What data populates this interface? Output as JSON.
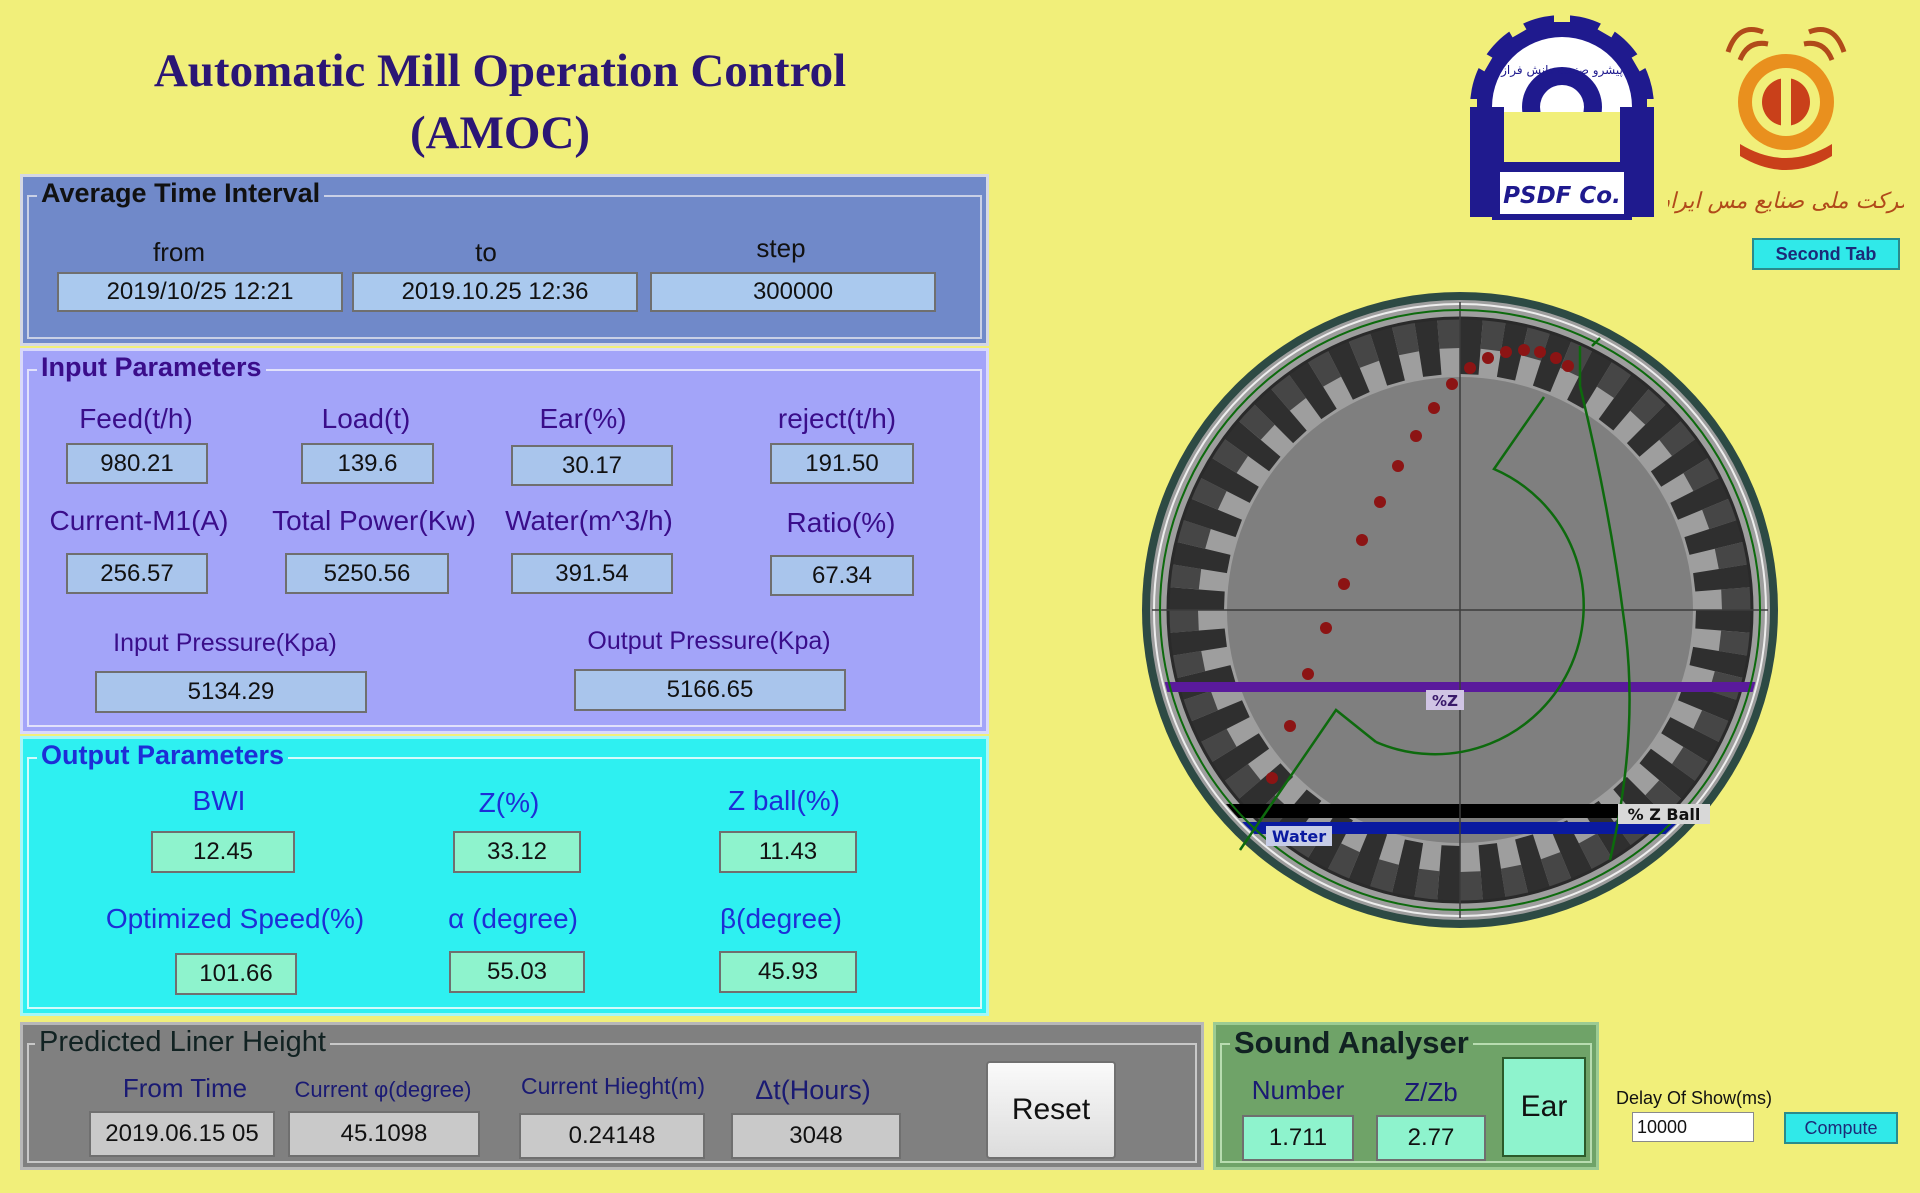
{
  "app_title": {
    "line1": "Automatic Mill Operation Control",
    "line2": "(AMOC)"
  },
  "logos": {
    "psdf_text": "PSDF Co.",
    "psdf_ring_text": "پیشرو صنعت دانش فراز",
    "company_text": "شرکت ملی صنایع مس ایران"
  },
  "second_tab_label": "Second Tab",
  "avg_time": {
    "title": "Average Time Interval",
    "from_label": "from",
    "from_value": "2019/10/25   12:21",
    "to_label": "to",
    "to_value": "2019.10.25   12:36",
    "step_label": "step",
    "step_value": "300000"
  },
  "input_params": {
    "title": "Input Parameters",
    "feed": {
      "label": "Feed(t/h)",
      "value": "980.21"
    },
    "load": {
      "label": "Load(t)",
      "value": "139.6"
    },
    "ear": {
      "label": "Ear(%)",
      "value": "30.17"
    },
    "reject": {
      "label": "reject(t/h)",
      "value": "191.50"
    },
    "current": {
      "label": "Current-M1(A)",
      "value": "256.57"
    },
    "power": {
      "label": "Total Power(Kw)",
      "value": "5250.56"
    },
    "water": {
      "label": "Water(m^3/h)",
      "value": "391.54"
    },
    "ratio": {
      "label": "Ratio(%)",
      "value": "67.34"
    },
    "in_pressure": {
      "label": "Input Pressure(Kpa)",
      "value": "5134.29"
    },
    "out_pressure": {
      "label": "Output Pressure(Kpa)",
      "value": "5166.65"
    }
  },
  "output_params": {
    "title": "Output Parameters",
    "bwi": {
      "label": "BWI",
      "value": "12.45"
    },
    "z": {
      "label": "Z(%)",
      "value": "33.12"
    },
    "zball": {
      "label": "Z ball(%)",
      "value": "11.43"
    },
    "speed": {
      "label": "Optimized Speed(%)",
      "value": "101.66"
    },
    "alpha": {
      "label": "α (degree)",
      "value": "55.03"
    },
    "beta": {
      "label": "β(degree)",
      "value": "45.93"
    }
  },
  "liner": {
    "title": "Predicted Liner Height",
    "from_time": {
      "label": "From Time",
      "value": "2019.06.15  05"
    },
    "phi": {
      "label": "Current φ(degree)",
      "value": "45.1098"
    },
    "height": {
      "label": "Current Hieght(m)",
      "value": "0.24148"
    },
    "dt": {
      "label": "Δt(Hours)",
      "value": "3048"
    },
    "reset_label": "Reset"
  },
  "sound": {
    "title": "Sound Analyser",
    "number": {
      "label": "Number",
      "value": "1.711"
    },
    "zzb": {
      "label": "Z/Zb",
      "value": "2.77"
    },
    "ear_label": "Ear"
  },
  "delay": {
    "label": "Delay Of Show(ms)",
    "value": "10000"
  },
  "compute_label": "Compute",
  "mill": {
    "z_label": "%Z",
    "zball_label": "% Z Ball",
    "water_label": "Water"
  },
  "colors": {
    "background": "#f1ef7a",
    "avg_panel": "#7089c9",
    "input_panel": "#a3a4f9",
    "output_panel": "#2ef0f1",
    "liner_panel": "#808080",
    "sound_panel": "#6fa368",
    "input_text": "#3a0d8a",
    "output_text": "#1d2ed6"
  }
}
